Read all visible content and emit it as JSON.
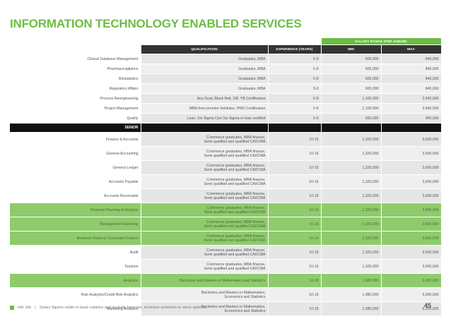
{
  "page_title": "INFORMATION TECHNOLOGY ENABLED SERVICES",
  "table": {
    "band_label": "SALARY RANGE (PER ANNUM)",
    "headers": {
      "qualification": "QUALIFICATION",
      "experience": "EXPERIENCE (YEARS)",
      "min": "MIN",
      "max": "MAX"
    },
    "rows_top": [
      {
        "role": "Clinical Database Management",
        "qual": "Graduates, MBA",
        "exp": "5-9",
        "min": "605,000",
        "max": "840,000"
      },
      {
        "role": "Pharmacovigilance",
        "qual": "Graduates, MBA",
        "exp": "5-9",
        "min": "605,000",
        "max": "840,000"
      },
      {
        "role": "Biostatistics",
        "qual": "Graduates, MBA",
        "exp": "5-9",
        "min": "605,000",
        "max": "840,000"
      },
      {
        "role": "Regulatory Affairs",
        "qual": "Graduates, MBA",
        "exp": "5-9",
        "min": "605,000",
        "max": "840,000"
      },
      {
        "role": "Process Reengineering",
        "qual": "Any Grad, Black Belt, GB, YB Certification",
        "exp": "6-9",
        "min": "1,100,000",
        "max": "2,400,000"
      },
      {
        "role": "Project Management",
        "qual": "MBA from premier Institutes, PMO Certification",
        "exp": "5-9",
        "min": "1,100,000",
        "max": "2,400,000"
      },
      {
        "role": "Quality",
        "qual": "Lean, Six Sigma Cert Six Sigma or lean certified",
        "exp": "5-9",
        "min": "660,000",
        "max": "960,000"
      }
    ],
    "section_label": "SENIOR",
    "rows_senior": [
      {
        "role": "Finance & Accounts",
        "qual1": "Commerce graduates, MBA finance,",
        "qual2": "Semi qualified and qualified CA/ICWA",
        "exp": "10-15",
        "min": "1,320,000",
        "max": "3,600,000",
        "hl": false
      },
      {
        "role": "General Accounting",
        "qual1": "Commerce graduates, MBA finance,",
        "qual2": "Semi qualified and qualified CA/ICWA",
        "exp": "10-15",
        "min": "1,320,000",
        "max": "3,600,000",
        "hl": false
      },
      {
        "role": "General Ledger",
        "qual1": "Commerce graduates, MBA finance,",
        "qual2": "Semi qualified and qualified CA/ICWA",
        "exp": "10-15",
        "min": "1,320,000",
        "max": "3,600,000",
        "hl": false
      },
      {
        "role": "Accounts Payable",
        "qual1": "Commerce graduates, MBA finance,",
        "qual2": "Semi qualified and qualified CA/ICWA",
        "exp": "10-15",
        "min": "1,320,000",
        "max": "3,600,000",
        "hl": false
      },
      {
        "role": "Accounts Receivable",
        "qual1": "Commerce graduates, MBA finance,",
        "qual2": "Semi qualified and qualified CA/ICWA",
        "exp": "10-15",
        "min": "1,320,000",
        "max": "3,600,000",
        "hl": false
      },
      {
        "role": "Financial Planning & Analysis",
        "qual1": "Commerce graduates, MBA finance,",
        "qual2": "Semi qualified and qualified CA/ICWA",
        "exp": "10-15",
        "min": "1,320,000",
        "max": "3,600,000",
        "hl": true
      },
      {
        "role": "Management Reporting",
        "qual1": "Commerce graduates, MBA finance,",
        "qual2": "Semi qualified and qualified CA/ICWA",
        "exp": "10-15",
        "min": "1,320,000",
        "max": "3,600,000",
        "hl": true
      },
      {
        "role": "Business Finance/ Corporate Finance",
        "qual1": "Commerce graduates, MBA finance,",
        "qual2": "Semi qualified and qualified CA/ICWA",
        "exp": "10-15",
        "min": "1,320,000",
        "max": "3,600,000",
        "hl": true
      },
      {
        "role": "Audit",
        "qual1": "Commerce graduates, MBA finance,",
        "qual2": "Semi qualified and qualified CA/ICWA",
        "exp": "10-15",
        "min": "1,320,000",
        "max": "3,600,000",
        "hl": false
      },
      {
        "role": "Taxation",
        "qual1": "Commerce graduates, MBA finance,",
        "qual2": "Semi qualified and qualified CA/ICWA",
        "exp": "10-15",
        "min": "1,320,000",
        "max": "3,600,000",
        "hl": false
      },
      {
        "role": "Analytics",
        "qual1": "Bachelors and Masters in Mathematics and Statistics",
        "qual2": "",
        "exp": "10-15",
        "min": "1,980,000",
        "max": "6,000,000",
        "hl": true
      },
      {
        "role": "Risk Analytics/Credit Risk Analytics",
        "qual1": "Bachelors and Masters in Mathematics,",
        "qual2": "Economics and Statistics",
        "exp": "10-15",
        "min": "1,980,000",
        "max": "6,000,000",
        "hl": false
      },
      {
        "role": "Marketing Analytics",
        "qual1": "Bachelors and Masters in Mathematics,",
        "qual2": "Economics and Statistics",
        "exp": "10-15",
        "min": "1,980,000",
        "max": "6,000,000",
        "hl": false
      }
    ]
  },
  "footer": {
    "brand": "Hot Job",
    "separator": "|",
    "note": "Salary figures relate to base salaries and exclude bonuses, incentive schemes or stock options."
  },
  "page_number": "45",
  "colors": {
    "accent": "#6cbd45",
    "highlight": "#8fcb6c",
    "header": "#333333",
    "section": "#111111"
  }
}
